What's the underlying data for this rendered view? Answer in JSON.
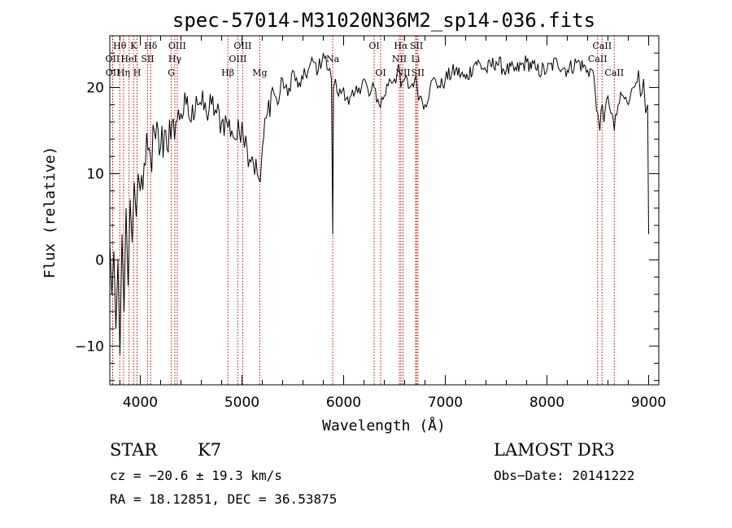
{
  "chart_data": {
    "type": "line",
    "title": "spec-57014-M31020N36M2_sp14-036.fits",
    "xlabel": "Wavelength (Å)",
    "ylabel": "Flux (relative)",
    "xlim": [
      3700,
      9100
    ],
    "ylim": [
      -14.5,
      26
    ],
    "x_ticks": [
      4000,
      5000,
      6000,
      7000,
      8000,
      9000
    ],
    "x_tick_labels": [
      "4000",
      "5000",
      "6000",
      "7000",
      "8000",
      "9000"
    ],
    "y_ticks": [
      -10,
      0,
      10,
      20
    ],
    "y_tick_labels": [
      "−10",
      "0",
      "10",
      "20"
    ],
    "series": [
      {
        "name": "flux",
        "x": [
          3700,
          3720,
          3740,
          3760,
          3780,
          3800,
          3820,
          3840,
          3860,
          3880,
          3900,
          3920,
          3940,
          3960,
          3980,
          4000,
          4050,
          4100,
          4150,
          4200,
          4250,
          4300,
          4350,
          4400,
          4450,
          4500,
          4550,
          4600,
          4650,
          4700,
          4750,
          4800,
          4850,
          4900,
          4950,
          5000,
          5050,
          5100,
          5150,
          5180,
          5200,
          5250,
          5300,
          5350,
          5400,
          5450,
          5500,
          5550,
          5600,
          5650,
          5700,
          5750,
          5800,
          5850,
          5880,
          5893,
          5900,
          5920,
          5950,
          6000,
          6050,
          6100,
          6150,
          6200,
          6250,
          6300,
          6350,
          6400,
          6450,
          6500,
          6550,
          6563,
          6600,
          6650,
          6700,
          6750,
          6800,
          6850,
          6900,
          6950,
          7000,
          7100,
          7200,
          7300,
          7400,
          7500,
          7600,
          7700,
          7800,
          7900,
          8000,
          8100,
          8200,
          8300,
          8400,
          8450,
          8500,
          8520,
          8545,
          8560,
          8600,
          8640,
          8662,
          8700,
          8750,
          8800,
          8850,
          8900,
          8920,
          8950,
          8970,
          8990,
          9000
        ],
        "y": [
          2,
          -4,
          1,
          -8,
          0,
          -11,
          3,
          -6,
          6,
          -3,
          7,
          2,
          9,
          5,
          10,
          8,
          11,
          12,
          14,
          13,
          15,
          14,
          16,
          17,
          18,
          16,
          19,
          18,
          17,
          18,
          17,
          16,
          16,
          15,
          14,
          16,
          13,
          12,
          10,
          9,
          13,
          17,
          20,
          18,
          21,
          19,
          22,
          20,
          21,
          22,
          23,
          22,
          24,
          22,
          21,
          3,
          20,
          21,
          19,
          20,
          18,
          19,
          20,
          21,
          19,
          20,
          18,
          19,
          21,
          21,
          22,
          20,
          21,
          20,
          21,
          19,
          18,
          20,
          21,
          20,
          21,
          22,
          21,
          23,
          22,
          23,
          22,
          22,
          23,
          22,
          22,
          23,
          22,
          23,
          22,
          22,
          17,
          15,
          18,
          16,
          19,
          17,
          15,
          18,
          19,
          18,
          20,
          22,
          19,
          21,
          17,
          18,
          3
        ]
      }
    ],
    "line_markers": [
      {
        "label": "Hθ",
        "wavelength": 3798,
        "row": 1
      },
      {
        "label": "OII",
        "wavelength": 3727,
        "row": 2
      },
      {
        "label": "OII",
        "wavelength": 3729,
        "row": 3
      },
      {
        "label": "Hη",
        "wavelength": 3835,
        "row": 3
      },
      {
        "label": "K",
        "wavelength": 3934,
        "row": 1
      },
      {
        "label": "HeI",
        "wavelength": 3889,
        "row": 2
      },
      {
        "label": "SII",
        "wavelength": 4072,
        "row": 2
      },
      {
        "label": "H",
        "wavelength": 3968,
        "row": 3
      },
      {
        "label": "Hδ",
        "wavelength": 4102,
        "row": 1
      },
      {
        "label": "OIII",
        "wavelength": 4363,
        "row": 1
      },
      {
        "label": "Hγ",
        "wavelength": 4340,
        "row": 2
      },
      {
        "label": "G",
        "wavelength": 4305,
        "row": 3
      },
      {
        "label": "Hβ",
        "wavelength": 4861,
        "row": 3
      },
      {
        "label": "OIII",
        "wavelength": 5007,
        "row": 1
      },
      {
        "label": "OIII",
        "wavelength": 4959,
        "row": 2
      },
      {
        "label": "Mg",
        "wavelength": 5175,
        "row": 3
      },
      {
        "label": "Na",
        "wavelength": 5893,
        "row": 2
      },
      {
        "label": "OI",
        "wavelength": 6300,
        "row": 1
      },
      {
        "label": "OI",
        "wavelength": 6364,
        "row": 3
      },
      {
        "label": "Hα",
        "wavelength": 6563,
        "row": 1
      },
      {
        "label": "SII",
        "wavelength": 6717,
        "row": 1
      },
      {
        "label": "NII",
        "wavelength": 6548,
        "row": 2
      },
      {
        "label": "Li",
        "wavelength": 6708,
        "row": 2
      },
      {
        "label": "NII",
        "wavelength": 6584,
        "row": 3
      },
      {
        "label": "SII",
        "wavelength": 6731,
        "row": 3
      },
      {
        "label": "CaII",
        "wavelength": 8542,
        "row": 1
      },
      {
        "label": "CaII",
        "wavelength": 8498,
        "row": 2
      },
      {
        "label": "CaII",
        "wavelength": 8662,
        "row": 3
      }
    ]
  },
  "info": {
    "object_class": "STAR",
    "subclass": "K7",
    "survey": "LAMOST DR3",
    "redshift": "cz = −20.6 ± 19.3 km/s",
    "obs_date": "Obs−Date: 20141222",
    "coords": "RA =  18.12851, DEC =  36.53875"
  },
  "colors": {
    "line": "#000000",
    "marker": "#cc0000",
    "background": "#ffffff"
  }
}
